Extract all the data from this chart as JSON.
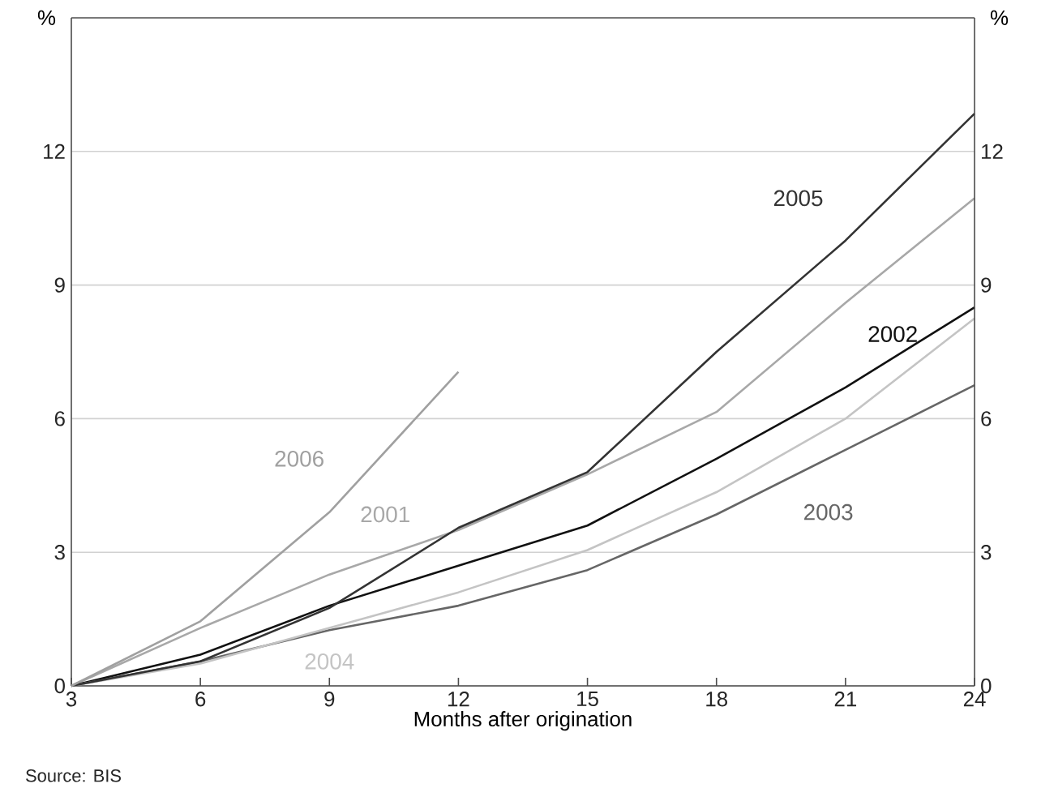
{
  "chart_data": {
    "type": "line",
    "x": [
      3,
      6,
      9,
      12,
      15,
      18,
      21,
      24
    ],
    "series": [
      {
        "name": "2001",
        "color": "#a8a8a8",
        "values": [
          0,
          1.3,
          2.5,
          3.5,
          4.75,
          6.15,
          8.6,
          10.95
        ]
      },
      {
        "name": "2002",
        "color": "#111111",
        "values": [
          0,
          0.7,
          1.8,
          2.7,
          3.6,
          5.1,
          6.7,
          8.5
        ]
      },
      {
        "name": "2003",
        "color": "#666666",
        "values": [
          0,
          0.55,
          1.25,
          1.8,
          2.6,
          3.85,
          5.3,
          6.75
        ]
      },
      {
        "name": "2004",
        "color": "#c4c4c4",
        "values": [
          0,
          0.5,
          1.3,
          2.1,
          3.05,
          4.35,
          6.0,
          8.25
        ]
      },
      {
        "name": "2005",
        "color": "#333333",
        "values": [
          0,
          0.55,
          1.75,
          3.55,
          4.8,
          7.5,
          10.0,
          12.85
        ]
      },
      {
        "name": "2006",
        "color": "#a0a0a0",
        "values": [
          0,
          1.45,
          3.9,
          7.05,
          null,
          null,
          null,
          null
        ]
      }
    ],
    "xlabel": "Months after origination",
    "ylabel": "%",
    "y2label": "%",
    "xlim": [
      3,
      24
    ],
    "xticks": [
      3,
      6,
      9,
      12,
      15,
      18,
      21,
      24
    ],
    "ylim": [
      0,
      15
    ],
    "yticks": [
      0,
      3,
      6,
      9,
      12
    ],
    "y2lim": [
      0,
      15
    ],
    "y2ticks": [
      0,
      3,
      6,
      9,
      12
    ],
    "grid": "y",
    "legend": false,
    "marker": "none",
    "line_style": "solid",
    "annotations": [
      "Source: BIS"
    ]
  }
}
